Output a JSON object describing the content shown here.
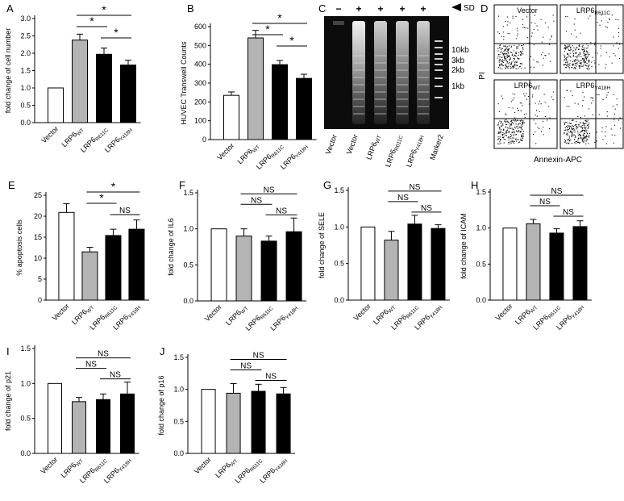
{
  "legend_groups": [
    "Vector",
    "LRP6WT",
    "LRP6R611C",
    "LRP6Y418H"
  ],
  "colors": {
    "vector": "#ffffff",
    "wt": "#b4b4b4",
    "mut": "#000000",
    "axis": "#000000"
  },
  "labels": {
    "vector": "Vector",
    "lrp6": "LRP6",
    "wt": "WT",
    "r611c": "R611C",
    "y418h": "Y418H"
  },
  "gel": {
    "panel_letter": "C",
    "signs": [
      "−",
      "+",
      "+",
      "+",
      "+"
    ],
    "sd_label": "SD",
    "sizes": [
      "10kb",
      "3kb",
      "2kb",
      "1kb"
    ],
    "lanes": [
      "Vector",
      "Vector",
      "LRP6WT",
      "LRP6R611C",
      "LRP6Y418H",
      "Marker2"
    ]
  },
  "flow": {
    "panel_letter": "D",
    "quadrants": [
      "Vector",
      "LRP6R611C",
      "LRP6WT",
      "LRP6Y418H"
    ],
    "ylabel": "PI",
    "xlabel": "Annexin-APC"
  },
  "chart_data": [
    {
      "id": "A",
      "type": "bar",
      "ylabel": "fold change of cell number",
      "ylim": [
        0,
        3.0
      ],
      "yticks": [
        0,
        0.5,
        1.0,
        1.5,
        2.0,
        2.5,
        3.0
      ],
      "categories": [
        "Vector",
        "LRP6WT",
        "LRP6R611C",
        "LRP6Y418H"
      ],
      "values": [
        1.0,
        2.38,
        1.97,
        1.66
      ],
      "errors": [
        0,
        0.17,
        0.18,
        0.14
      ],
      "significance": [
        {
          "from": 1,
          "to": 3,
          "label": "*"
        },
        {
          "from": 1,
          "to": 2,
          "label": "*"
        },
        {
          "from": 2,
          "to": 3,
          "label": "*"
        }
      ]
    },
    {
      "id": "B",
      "type": "bar",
      "ylabel": "HUVEC Transwell Counts",
      "ylim": [
        0,
        600
      ],
      "yticks": [
        0,
        100,
        200,
        300,
        400,
        500,
        600
      ],
      "categories": [
        "Vector",
        "LRP6WT",
        "LRP6R611C",
        "LRP6Y418H"
      ],
      "values": [
        235,
        540,
        398,
        325
      ],
      "errors": [
        18,
        40,
        22,
        22
      ],
      "significance": [
        {
          "from": 1,
          "to": 3,
          "label": "*"
        },
        {
          "from": 1,
          "to": 2,
          "label": "*"
        },
        {
          "from": 2,
          "to": 3,
          "label": "*"
        }
      ]
    },
    {
      "id": "E",
      "type": "bar",
      "ylabel": "% apoptosis cells",
      "ylim": [
        0,
        25
      ],
      "yticks": [
        0,
        5,
        10,
        15,
        20,
        25
      ],
      "categories": [
        "Vector",
        "LRP6WT",
        "LRP6R611C",
        "LRP6Y418H"
      ],
      "values": [
        20.9,
        11.5,
        15.4,
        16.9
      ],
      "errors": [
        2.1,
        1.1,
        1.5,
        2.2
      ],
      "significance": [
        {
          "from": 1,
          "to": 3,
          "label": "*"
        },
        {
          "from": 1,
          "to": 2,
          "label": "*"
        },
        {
          "from": 2,
          "to": 3,
          "label": "NS"
        }
      ]
    },
    {
      "id": "F",
      "type": "bar",
      "ylabel": "fold change of IL6",
      "ylim": [
        0,
        1.5
      ],
      "yticks": [
        0,
        0.5,
        1.0,
        1.5
      ],
      "categories": [
        "Vector",
        "LRP6WT",
        "LRP6R611C",
        "LRP6Y418H"
      ],
      "values": [
        1.0,
        0.9,
        0.83,
        0.96
      ],
      "errors": [
        0,
        0.1,
        0.07,
        0.19
      ],
      "significance": [
        {
          "from": 1,
          "to": 3,
          "label": "NS"
        },
        {
          "from": 1,
          "to": 2,
          "label": "NS"
        },
        {
          "from": 2,
          "to": 3,
          "label": "NS"
        }
      ]
    },
    {
      "id": "G",
      "type": "bar",
      "ylabel": "fold change of SELE",
      "ylim": [
        0,
        1.5
      ],
      "yticks": [
        0,
        0.5,
        1.0,
        1.5
      ],
      "categories": [
        "Vector",
        "LRP6WT",
        "LRP6R611C",
        "LRP6Y418H"
      ],
      "values": [
        1.0,
        0.82,
        1.04,
        0.98
      ],
      "errors": [
        0,
        0.12,
        0.12,
        0.05
      ],
      "significance": [
        {
          "from": 1,
          "to": 3,
          "label": "NS"
        },
        {
          "from": 1,
          "to": 2,
          "label": "NS"
        },
        {
          "from": 2,
          "to": 3,
          "label": "NS"
        }
      ]
    },
    {
      "id": "H",
      "type": "bar",
      "ylabel": "fold change of ICAM",
      "ylim": [
        0,
        1.5
      ],
      "yticks": [
        0,
        0.5,
        1.0,
        1.5
      ],
      "categories": [
        "Vector",
        "LRP6WT",
        "LRP6R611C",
        "LRP6Y418H"
      ],
      "values": [
        1.0,
        1.06,
        0.93,
        1.02
      ],
      "errors": [
        0,
        0.06,
        0.06,
        0.08
      ],
      "significance": [
        {
          "from": 1,
          "to": 3,
          "label": "NS"
        },
        {
          "from": 1,
          "to": 2,
          "label": "NS"
        },
        {
          "from": 2,
          "to": 3,
          "label": "NS"
        }
      ]
    },
    {
      "id": "I",
      "type": "bar",
      "ylabel": "fold change of p21",
      "ylim": [
        0,
        1.5
      ],
      "yticks": [
        0,
        0.5,
        1.0,
        1.5
      ],
      "categories": [
        "Vector",
        "LRP6WT",
        "LRP6R611C",
        "LRP6Y418H"
      ],
      "values": [
        1.0,
        0.74,
        0.77,
        0.85
      ],
      "errors": [
        0,
        0.06,
        0.08,
        0.17
      ],
      "significance": [
        {
          "from": 1,
          "to": 3,
          "label": "NS"
        },
        {
          "from": 1,
          "to": 2,
          "label": "NS"
        },
        {
          "from": 2,
          "to": 3,
          "label": "NS"
        }
      ]
    },
    {
      "id": "J",
      "type": "bar",
      "ylabel": "fold change of p16",
      "ylim": [
        0,
        1.5
      ],
      "yticks": [
        0,
        0.5,
        1.0,
        1.5
      ],
      "categories": [
        "Vector",
        "LRP6WT",
        "LRP6R611C",
        "LRP6Y418H"
      ],
      "values": [
        1.0,
        0.94,
        0.97,
        0.93
      ],
      "errors": [
        0,
        0.15,
        0.11,
        0.1
      ],
      "significance": [
        {
          "from": 1,
          "to": 3,
          "label": "NS"
        },
        {
          "from": 1,
          "to": 2,
          "label": "NS"
        },
        {
          "from": 2,
          "to": 3,
          "label": "NS"
        }
      ]
    }
  ]
}
